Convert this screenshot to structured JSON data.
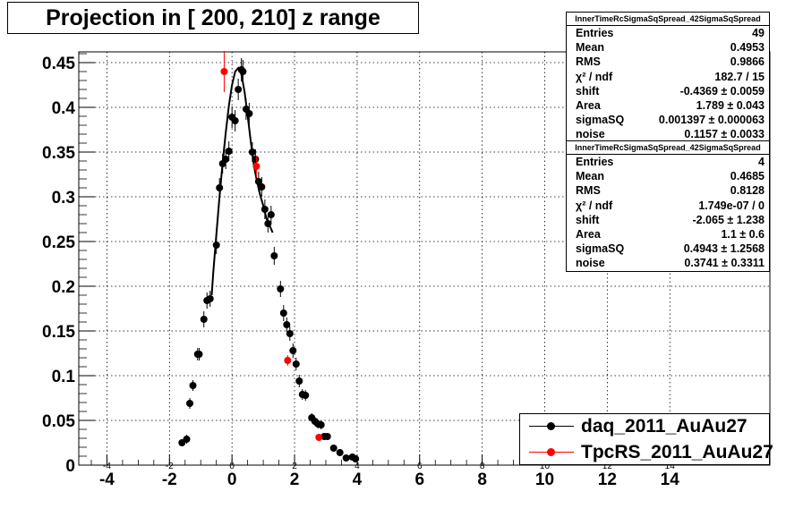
{
  "title": "Projection in [ 200, 210] z range",
  "stats": [
    {
      "name": "InnerTimeRcSigmaSqSpread_42SigmaSqSpread",
      "rows": [
        {
          "k": "Entries",
          "v": "49"
        },
        {
          "k": "Mean",
          "v": "0.4953"
        },
        {
          "k": "RMS",
          "v": "0.9866"
        },
        {
          "k": "χ² / ndf",
          "v": "182.7 / 15"
        },
        {
          "k": "shift",
          "v": "-0.4369 ± 0.0059"
        },
        {
          "k": "Area",
          "v": "1.789 ± 0.043"
        },
        {
          "k": "sigmaSQ",
          "v": "0.001397 ± 0.000063"
        },
        {
          "k": "noise",
          "v": "0.1157 ± 0.0033"
        }
      ]
    },
    {
      "name": "InnerTimeRcSigmaSqSpread_42SigmaSqSpread",
      "rows": [
        {
          "k": "Entries",
          "v": "4"
        },
        {
          "k": "Mean",
          "v": "0.4685"
        },
        {
          "k": "RMS",
          "v": "0.8128"
        },
        {
          "k": "χ² / ndf",
          "v": "1.749e-07 / 0"
        },
        {
          "k": "shift",
          "v": "-2.065 ± 1.238"
        },
        {
          "k": "Area",
          "v": "1.1 ± 0.6"
        },
        {
          "k": "sigmaSQ",
          "v": "0.4943 ± 1.2568"
        },
        {
          "k": "noise",
          "v": "0.3741 ± 0.3311"
        }
      ]
    }
  ],
  "legend": [
    {
      "label": "daq_2011_AuAu27",
      "color": "#000000"
    },
    {
      "label": "TpcRS_2011_AuAu27",
      "color": "#ff0000"
    }
  ],
  "chart_data": {
    "type": "scatter",
    "title": "Projection in [ 200, 210] z range",
    "xlabel": "",
    "ylabel": "",
    "xlim": [
      -4.9,
      17.2
    ],
    "ylim": [
      0,
      0.462
    ],
    "grid": true,
    "x_ticks": [
      -4,
      -2,
      0,
      2,
      4,
      6,
      8,
      10,
      12,
      14
    ],
    "x_tick_labels": [
      "-4",
      "-2",
      "0",
      "2",
      "4",
      "6",
      "8",
      "10",
      "12",
      "14"
    ],
    "y_ticks": [
      0,
      0.05,
      0.1,
      0.15,
      0.2,
      0.25,
      0.3,
      0.35,
      0.4,
      0.45
    ],
    "y_tick_labels": [
      "0",
      "0.05",
      "0.1",
      "0.15",
      "0.2",
      "0.25",
      "0.3",
      "0.35",
      "0.4",
      "0.45"
    ],
    "legend_position": "bottom-right",
    "series": [
      {
        "name": "daq_2011_AuAu27",
        "color": "#000000",
        "x": [
          -1.6,
          -1.45,
          -1.35,
          -1.25,
          -1.1,
          -1.05,
          -0.9,
          -0.8,
          -0.7,
          -0.5,
          -0.4,
          -0.3,
          -0.2,
          -0.1,
          0.0,
          0.1,
          0.2,
          0.3,
          0.35,
          0.45,
          0.55,
          0.65,
          0.75,
          0.85,
          0.95,
          1.05,
          1.15,
          1.25,
          1.35,
          1.55,
          1.65,
          1.75,
          1.85,
          1.95,
          2.05,
          2.15,
          2.25,
          2.35,
          2.55,
          2.65,
          2.75,
          2.85,
          2.95,
          3.05,
          3.25,
          3.45,
          3.65,
          3.85,
          3.95
        ],
        "y": [
          0.025,
          0.029,
          0.069,
          0.089,
          0.124,
          0.124,
          0.163,
          0.184,
          0.186,
          0.246,
          0.31,
          0.337,
          0.342,
          0.351,
          0.389,
          0.385,
          0.42,
          0.442,
          0.44,
          0.398,
          0.393,
          0.35,
          0.342,
          0.317,
          0.311,
          0.286,
          0.27,
          0.28,
          0.234,
          0.197,
          0.17,
          0.157,
          0.147,
          0.128,
          0.113,
          0.094,
          0.079,
          0.078,
          0.053,
          0.049,
          0.046,
          0.045,
          0.032,
          0.032,
          0.019,
          0.014,
          0.008,
          0.009,
          0.007
        ],
        "y_err": [
          0.004,
          0.005,
          0.006,
          0.006,
          0.007,
          0.007,
          0.009,
          0.009,
          0.009,
          0.01,
          0.011,
          0.011,
          0.011,
          0.011,
          0.012,
          0.012,
          0.012,
          0.013,
          0.013,
          0.012,
          0.012,
          0.011,
          0.011,
          0.011,
          0.011,
          0.011,
          0.01,
          0.01,
          0.01,
          0.009,
          0.009,
          0.008,
          0.008,
          0.008,
          0.007,
          0.007,
          0.006,
          0.006,
          0.005,
          0.005,
          0.005,
          0.005,
          0.004,
          0.004,
          0.003,
          0.003,
          0.003,
          0.003,
          0.003
        ]
      },
      {
        "name": "TpcRS_2011_AuAu27",
        "color": "#ff0000",
        "x": [
          -0.25,
          0.78,
          1.78,
          2.78
        ],
        "y": [
          0.44,
          0.334,
          0.117,
          0.031
        ],
        "y_err": [
          0.023,
          0.012,
          0.006,
          0.003
        ]
      }
    ],
    "fit_curve": {
      "color": "#000000",
      "x": [
        -0.65,
        -0.6,
        -0.5,
        -0.4,
        -0.3,
        -0.2,
        -0.1,
        0.0,
        0.1,
        0.2,
        0.3,
        0.4,
        0.5,
        0.6,
        0.7,
        0.8,
        0.9,
        1.0,
        1.1,
        1.2,
        1.3
      ],
      "y": [
        0.19,
        0.215,
        0.258,
        0.3,
        0.338,
        0.372,
        0.402,
        0.425,
        0.44,
        0.444,
        0.437,
        0.418,
        0.391,
        0.362,
        0.335,
        0.317,
        0.302,
        0.29,
        0.276,
        0.268,
        0.26
      ]
    }
  }
}
